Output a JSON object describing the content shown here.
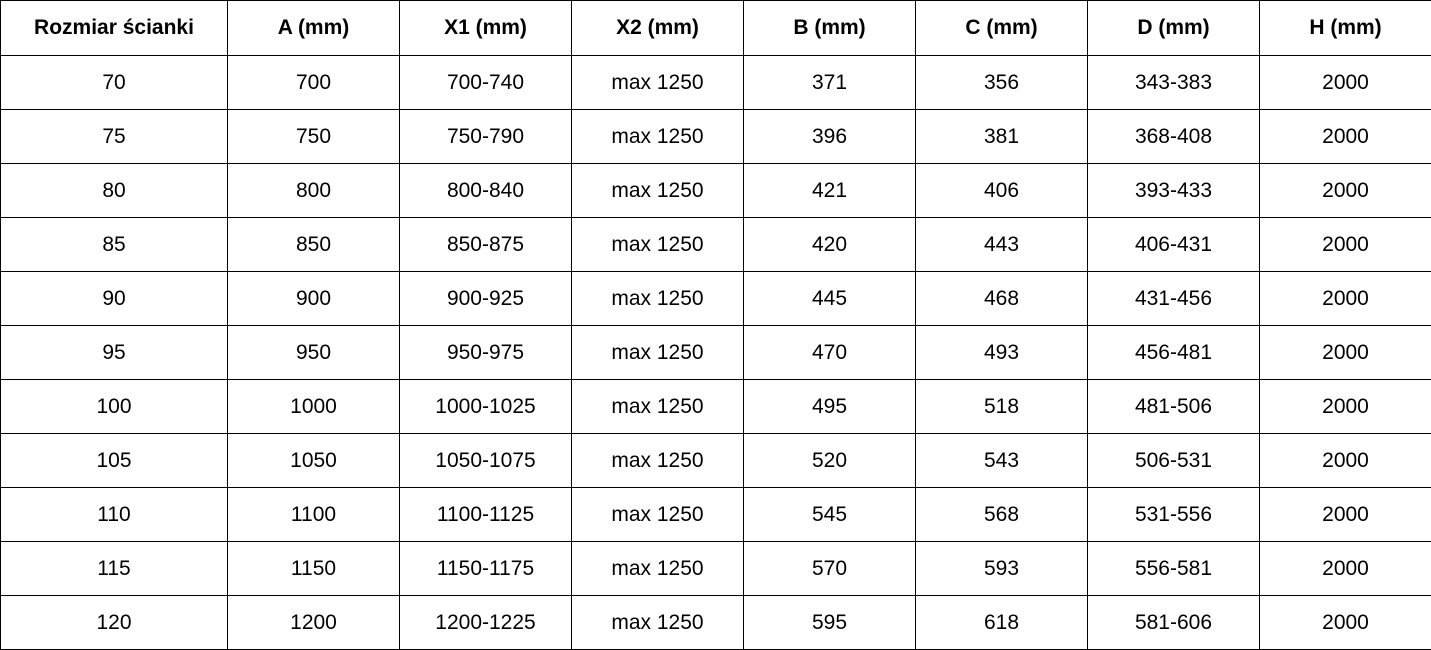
{
  "table": {
    "headers": [
      "Rozmiar ścianki",
      "A (mm)",
      "X1 (mm)",
      "X2 (mm)",
      "B (mm)",
      "C (mm)",
      "D (mm)",
      "H (mm)"
    ],
    "rows": [
      [
        "70",
        "700",
        "700-740",
        "max 1250",
        "371",
        "356",
        "343-383",
        "2000"
      ],
      [
        "75",
        "750",
        "750-790",
        "max 1250",
        "396",
        "381",
        "368-408",
        "2000"
      ],
      [
        "80",
        "800",
        "800-840",
        "max 1250",
        "421",
        "406",
        "393-433",
        "2000"
      ],
      [
        "85",
        "850",
        "850-875",
        "max 1250",
        "420",
        "443",
        "406-431",
        "2000"
      ],
      [
        "90",
        "900",
        "900-925",
        "max 1250",
        "445",
        "468",
        "431-456",
        "2000"
      ],
      [
        "95",
        "950",
        "950-975",
        "max 1250",
        "470",
        "493",
        "456-481",
        "2000"
      ],
      [
        "100",
        "1000",
        "1000-1025",
        "max 1250",
        "495",
        "518",
        "481-506",
        "2000"
      ],
      [
        "105",
        "1050",
        "1050-1075",
        "max 1250",
        "520",
        "543",
        "506-531",
        "2000"
      ],
      [
        "110",
        "1100",
        "1100-1125",
        "max 1250",
        "545",
        "568",
        "531-556",
        "2000"
      ],
      [
        "115",
        "1150",
        "1150-1175",
        "max 1250",
        "570",
        "593",
        "556-581",
        "2000"
      ],
      [
        "120",
        "1200",
        "1200-1225",
        "max 1250",
        "595",
        "618",
        "581-606",
        "2000"
      ]
    ]
  }
}
